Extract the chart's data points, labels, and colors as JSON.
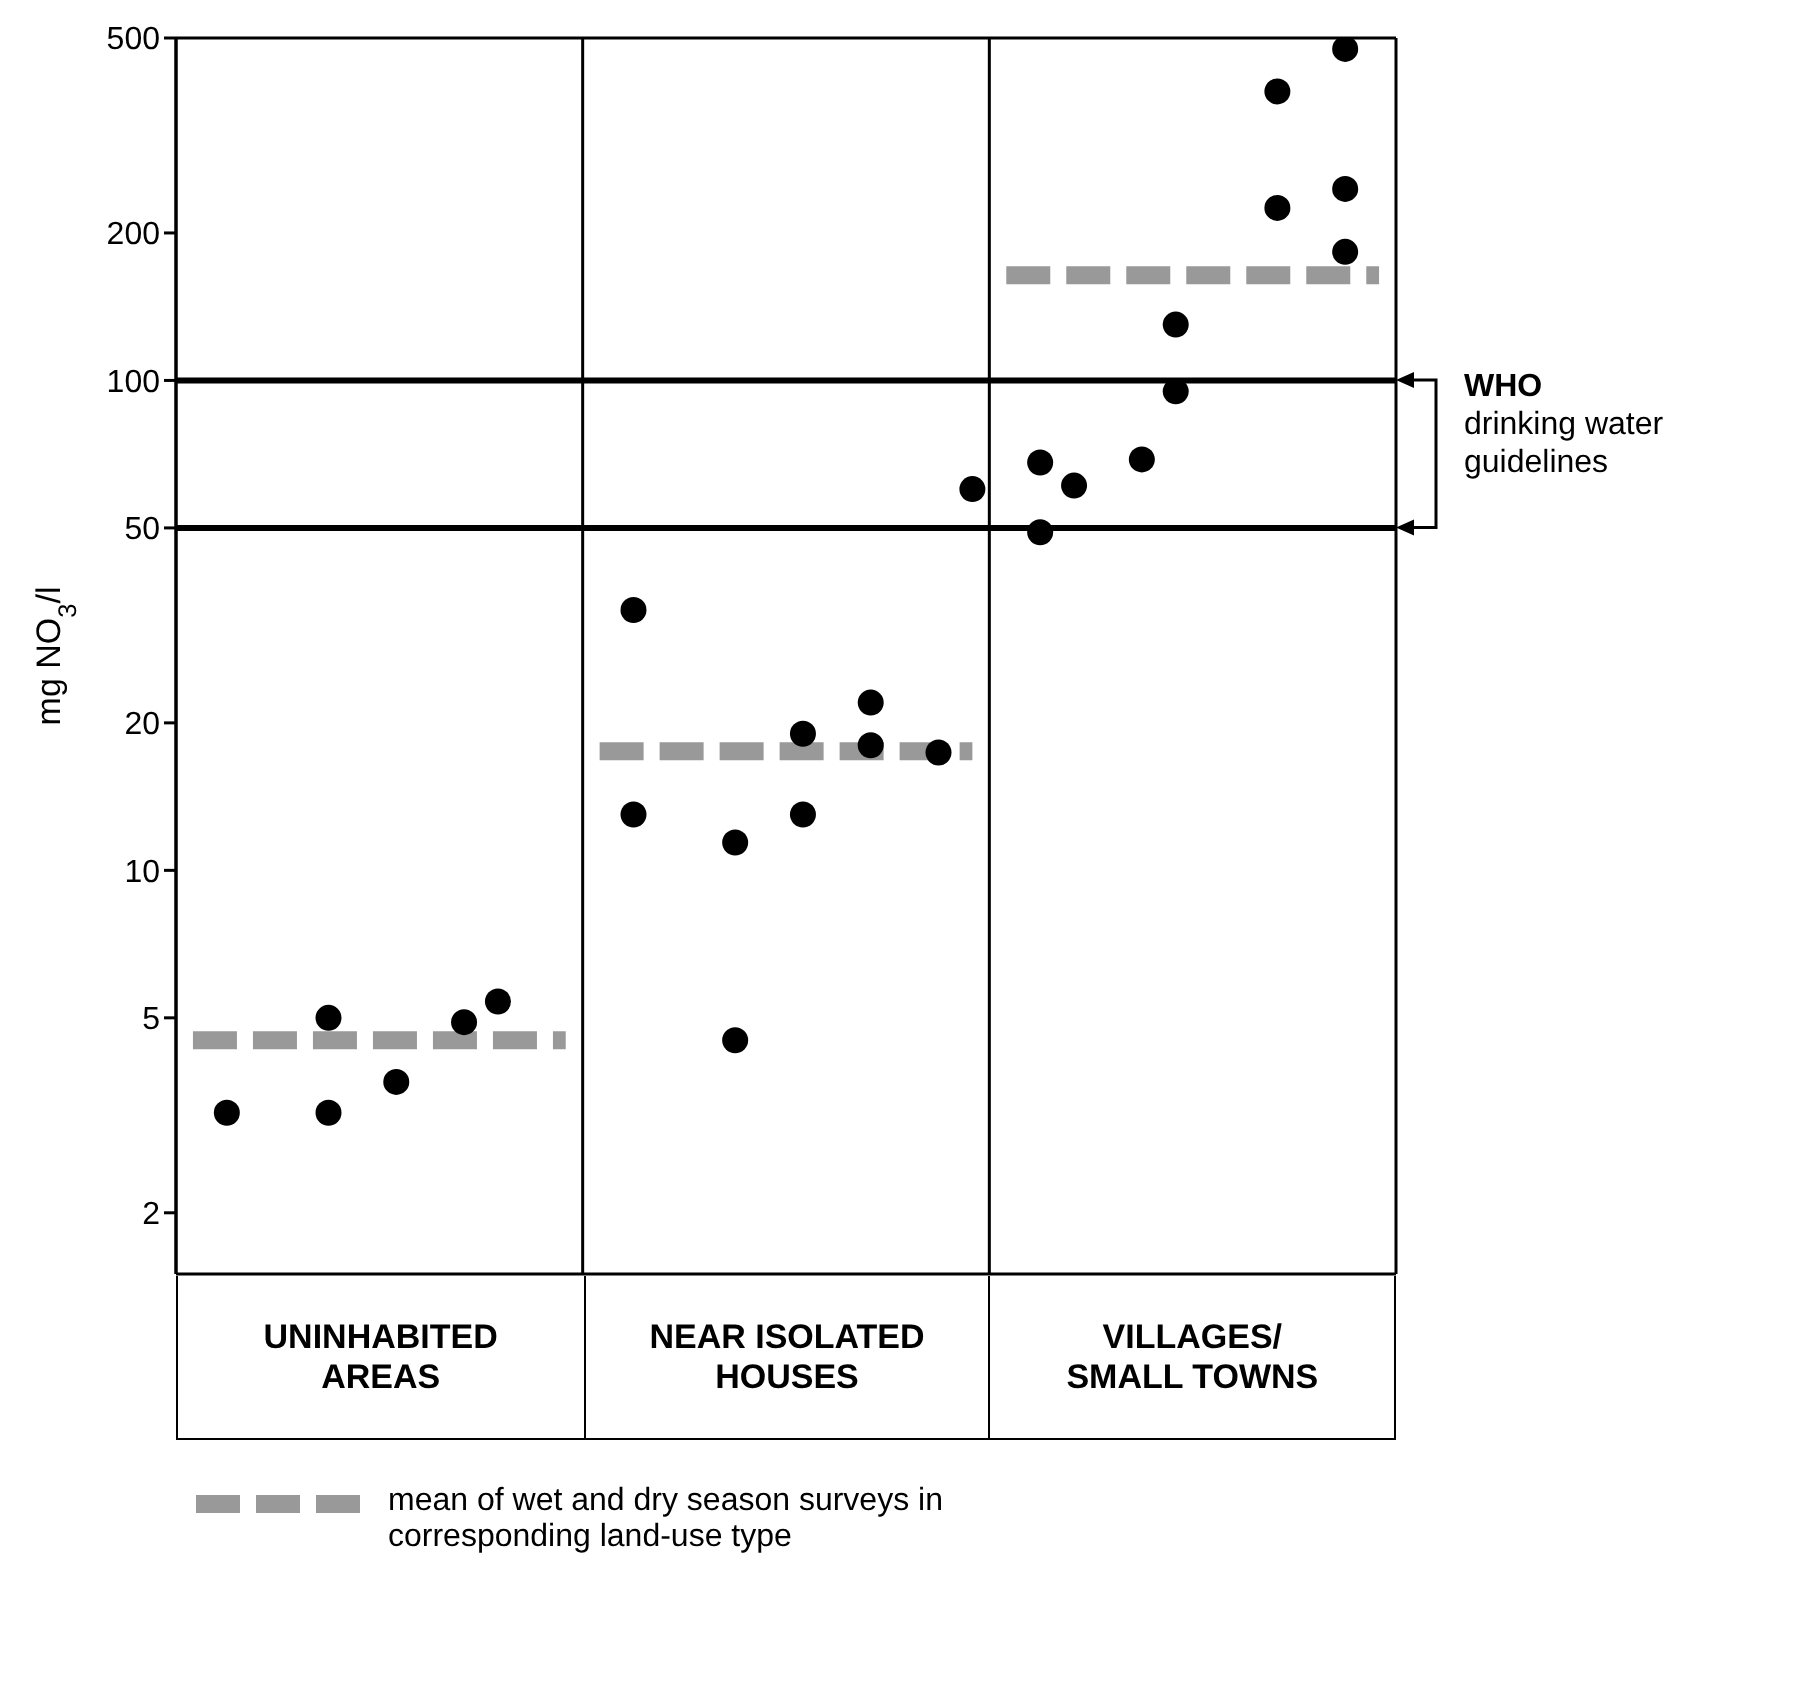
{
  "chart_data": {
    "type": "scatter",
    "ylabel": "mg NO$_{3}$/l",
    "log": "y",
    "legend": "bottom",
    "tick_labels": "y",
    "marker": "circle",
    "categories": [
      null,
      null,
      null,
      null,
      null,
      null,
      null,
      null,
      null,
      null,
      null,
      null,
      null,
      null,
      null,
      null,
      null,
      null,
      null,
      null,
      null,
      null,
      null,
      null,
      null,
      null,
      null,
      null,
      null,
      null,
      null,
      null,
      null,
      null,
      null,
      null
    ],
    "ylim": [
      1.5,
      500
    ],
    "yticks": [
      2,
      5,
      10,
      20,
      50,
      100,
      200,
      500
    ],
    "ref_lines": [
      {
        "axis": "y",
        "value": 100,
        "label": null,
        "color": "#000000"
      },
      {
        "axis": "y",
        "value": 50,
        "label": null,
        "color": "#000000"
      }
    ],
    "annotations": [
      "WHO",
      "drinking water guidelines",
      "UNINHABITED AREAS",
      "NEAR ISOLATED HOUSES",
      "VILLAGES/ SMALL TOWNS"
    ],
    "series": [
      {
        "color": "#000000",
        "values": [
          null,
          3.2,
          null,
          null,
          5,
          null,
          3.7,
          null,
          4.9,
          5.4,
          null,
          null,
          null,
          34,
          null,
          null,
          11.4,
          null,
          19,
          null,
          22,
          null,
          17.4,
          60,
          null,
          49,
          61,
          null,
          69,
          95,
          null,
          null,
          225,
          null,
          475,
          null
        ]
      },
      {
        "color": "#000000",
        "values": [
          null,
          null,
          null,
          null,
          3.2,
          null,
          null,
          null,
          null,
          null,
          null,
          null,
          null,
          13,
          null,
          null,
          4.5,
          null,
          13,
          null,
          18,
          null,
          null,
          null,
          null,
          68,
          null,
          null,
          null,
          130,
          null,
          null,
          389,
          null,
          246,
          null
        ]
      },
      {
        "color": "#000000",
        "values": [
          null,
          null,
          null,
          null,
          null,
          null,
          null,
          null,
          null,
          null,
          null,
          null,
          null,
          null,
          null,
          null,
          null,
          null,
          null,
          null,
          null,
          null,
          null,
          null,
          null,
          null,
          null,
          null,
          null,
          null,
          null,
          null,
          null,
          null,
          183,
          null
        ]
      },
      {
        "type": "line",
        "name": "mean of wet and dry season surveys in corresponding land-use type",
        "color": "#999999",
        "line_style": "dashed",
        "marker": "none",
        "values": [
          4.5,
          4.5,
          4.5,
          4.5,
          4.5,
          4.5,
          4.5,
          4.5,
          4.5,
          4.5,
          4.5,
          4.5,
          null,
          null,
          null,
          null,
          null,
          null,
          null,
          null,
          null,
          null,
          null,
          null,
          null,
          null,
          null,
          null,
          null,
          null,
          null,
          null,
          null,
          null,
          null,
          null
        ]
      },
      {
        "type": "line",
        "color": "#999999",
        "line_style": "dashed",
        "marker": "none",
        "values": [
          null,
          null,
          null,
          null,
          null,
          null,
          null,
          null,
          null,
          null,
          null,
          null,
          17.5,
          17.5,
          17.5,
          17.5,
          17.5,
          17.5,
          17.5,
          17.5,
          17.5,
          17.5,
          17.5,
          17.5,
          null,
          null,
          null,
          null,
          null,
          null,
          null,
          null,
          null,
          null,
          null,
          null
        ]
      },
      {
        "type": "line",
        "color": "#999999",
        "line_style": "dashed",
        "marker": "none",
        "values": [
          null,
          null,
          null,
          null,
          null,
          null,
          null,
          null,
          null,
          null,
          null,
          null,
          null,
          null,
          null,
          null,
          null,
          null,
          null,
          null,
          null,
          null,
          null,
          null,
          164,
          164,
          164,
          164,
          164,
          164,
          164,
          164,
          164,
          164,
          164,
          164
        ]
      }
    ]
  }
}
